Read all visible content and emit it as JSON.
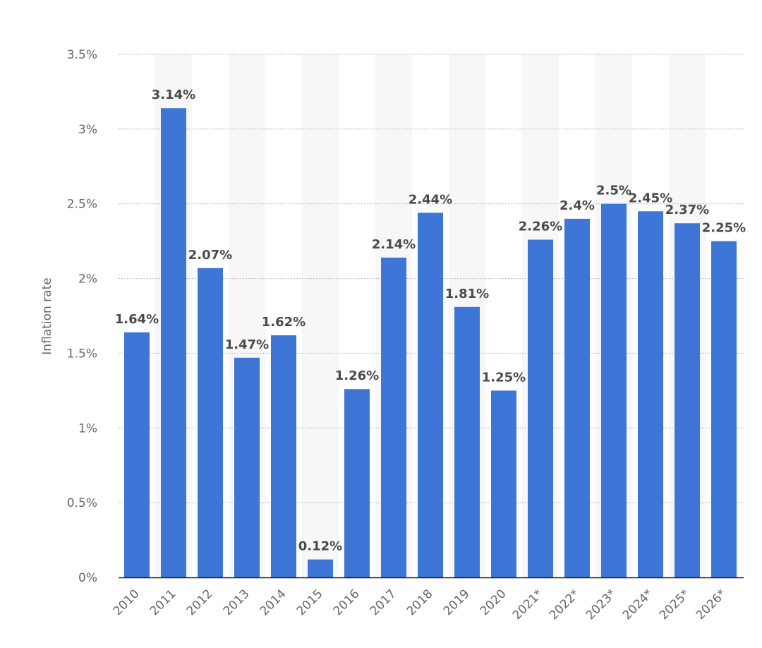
{
  "chart_data": {
    "type": "bar",
    "categories": [
      "2010",
      "2011",
      "2012",
      "2013",
      "2014",
      "2015",
      "2016",
      "2017",
      "2018",
      "2019",
      "2020",
      "2021*",
      "2022*",
      "2023*",
      "2024*",
      "2025*",
      "2026*"
    ],
    "values": [
      1.64,
      3.14,
      2.07,
      1.47,
      1.62,
      0.12,
      1.26,
      2.14,
      2.44,
      1.81,
      1.25,
      2.26,
      2.4,
      2.5,
      2.45,
      2.37,
      2.25
    ],
    "data_labels": [
      "1.64%",
      "3.14%",
      "2.07%",
      "1.47%",
      "1.62%",
      "0.12%",
      "1.26%",
      "2.14%",
      "2.44%",
      "1.81%",
      "1.25%",
      "2.26%",
      "2.4%",
      "2.5%",
      "2.45%",
      "2.37%",
      "2.25%"
    ],
    "ylabel": "Inflation rate",
    "ylim": [
      0,
      3.5
    ],
    "yticks": [
      0,
      0.5,
      1,
      1.5,
      2,
      2.5,
      3,
      3.5
    ],
    "ytick_labels": [
      "0%",
      "0.5%",
      "1%",
      "1.5%",
      "2%",
      "2.5%",
      "3%",
      "3.5%"
    ],
    "grid": true,
    "bar_color": "#3d76d6",
    "band_color": "#f7f7f7"
  }
}
